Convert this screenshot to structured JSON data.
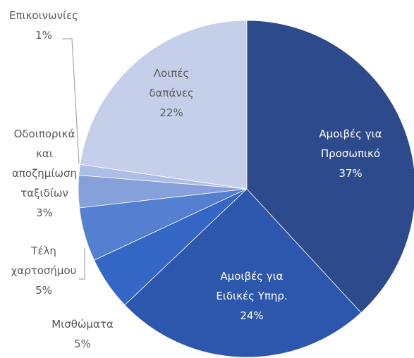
{
  "chart_data": {
    "type": "pie",
    "categories": [
      "Αμοιβές για Προσωπικό",
      "Αμοιβές για Ειδικές Υπηρ.",
      "Μισθώματα",
      "Τέλη χαρτοσήμου",
      "Οδοιπορικά και αποζημίωση ταξιδίων",
      "Επικοινωνίες",
      "Λοιπές δαπάνες"
    ],
    "values": [
      37,
      24,
      5,
      5,
      3,
      1,
      22
    ],
    "value_labels": [
      "37%",
      "24%",
      "5%",
      "5%",
      "3%",
      "1%",
      "22%"
    ],
    "colors": [
      "#2d4b8c",
      "#2c57ac",
      "#3466c6",
      "#5580d2",
      "#86a0dc",
      "#aebde7",
      "#c6cfea"
    ]
  }
}
